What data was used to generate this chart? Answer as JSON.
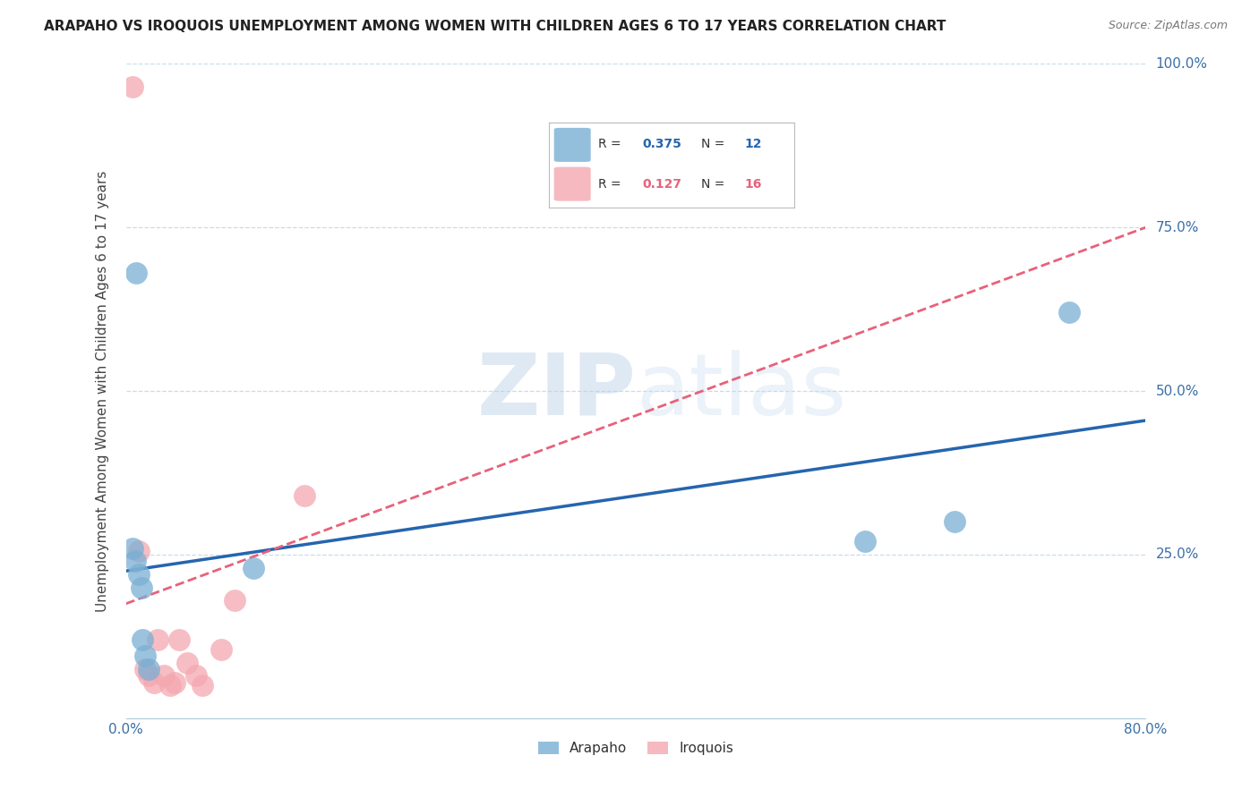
{
  "title": "ARAPAHO VS IROQUOIS UNEMPLOYMENT AMONG WOMEN WITH CHILDREN AGES 6 TO 17 YEARS CORRELATION CHART",
  "source": "Source: ZipAtlas.com",
  "ylabel": "Unemployment Among Women with Children Ages 6 to 17 years",
  "xlim": [
    0.0,
    0.8
  ],
  "ylim": [
    0.0,
    1.0
  ],
  "xticks": [
    0.0,
    0.1,
    0.2,
    0.3,
    0.4,
    0.5,
    0.6,
    0.7,
    0.8
  ],
  "xticklabels": [
    "0.0%",
    "",
    "",
    "",
    "",
    "",
    "",
    "",
    "80.0%"
  ],
  "ytick_positions": [
    0.25,
    0.5,
    0.75,
    1.0
  ],
  "ytick_labels": [
    "25.0%",
    "50.0%",
    "75.0%",
    "100.0%"
  ],
  "arapaho_x": [
    0.008,
    0.005,
    0.007,
    0.01,
    0.012,
    0.013,
    0.015,
    0.018,
    0.1,
    0.58,
    0.65,
    0.74
  ],
  "arapaho_y": [
    0.68,
    0.26,
    0.24,
    0.22,
    0.2,
    0.12,
    0.095,
    0.075,
    0.23,
    0.27,
    0.3,
    0.62
  ],
  "iroquois_x": [
    0.005,
    0.01,
    0.015,
    0.018,
    0.022,
    0.025,
    0.03,
    0.035,
    0.038,
    0.042,
    0.048,
    0.055,
    0.06,
    0.075,
    0.085,
    0.14
  ],
  "iroquois_y": [
    0.965,
    0.255,
    0.075,
    0.065,
    0.055,
    0.12,
    0.065,
    0.05,
    0.055,
    0.12,
    0.085,
    0.065,
    0.05,
    0.105,
    0.18,
    0.34
  ],
  "arapaho_color": "#7aafd4",
  "iroquois_color": "#f4a8b0",
  "arapaho_line_color": "#2565ae",
  "iroquois_line_color": "#e8617a",
  "background_color": "#ffffff",
  "grid_color": "#c8dce8",
  "watermark_zip": "ZIP",
  "watermark_atlas": "atlas",
  "arapaho_R": "0.375",
  "arapaho_N": "12",
  "iroquois_R": "0.127",
  "iroquois_N": "16",
  "legend_R_color": "#333355",
  "legend_val_blue": "#2565ae",
  "legend_val_pink": "#e8617a"
}
